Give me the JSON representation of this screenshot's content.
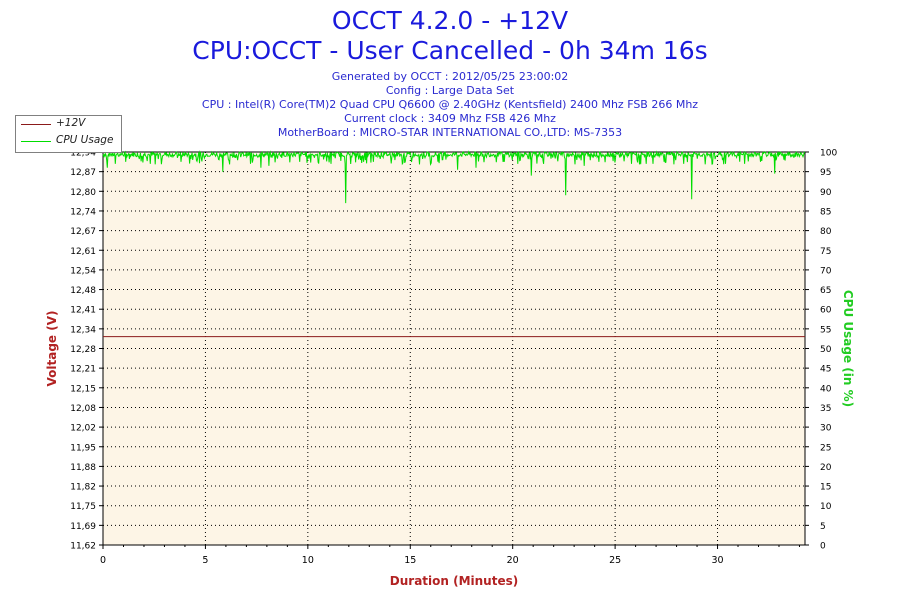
{
  "header": {
    "title_line1": "OCCT 4.2.0 - +12V",
    "title_line2": "CPU:OCCT - User Cancelled - 0h 34m 16s",
    "info": [
      "Generated by OCCT : 2012/05/25 23:00:02",
      "Config : Large Data Set",
      "CPU : Intel(R) Core(TM)2 Quad CPU Q6600 @ 2.40GHz (Kentsfield) 2400 Mhz FSB 266 Mhz",
      "Current clock : 3409 Mhz FSB 426 Mhz",
      "MotherBoard : MICRO-STAR INTERNATIONAL CO.,LTD: MS-7353"
    ]
  },
  "legend": {
    "items": [
      {
        "label": "+12V",
        "color": "#8b1a1a"
      },
      {
        "label": "CPU Usage",
        "color": "#00dd00"
      }
    ]
  },
  "chart_data": {
    "type": "line",
    "xlabel": "Duration (Minutes)",
    "ylabel_left": "Voltage (V)",
    "ylabel_right": "CPU Usage (in %)",
    "xlim": [
      0,
      34.27
    ],
    "xticks": [
      0,
      5,
      10,
      15,
      20,
      25,
      30
    ],
    "ylim_left": [
      11.62,
      12.94
    ],
    "yticks_left": [
      "11,62",
      "11,69",
      "11,75",
      "11,82",
      "11,88",
      "11,95",
      "12,02",
      "12,08",
      "12,15",
      "12,21",
      "12,28",
      "12,34",
      "12,41",
      "12,48",
      "12,54",
      "12,61",
      "12,67",
      "12,74",
      "12,80",
      "12,87",
      "12,94"
    ],
    "ylim_right": [
      0,
      100
    ],
    "yticks_right": [
      "0",
      "5",
      "10",
      "15",
      "20",
      "25",
      "30",
      "35",
      "40",
      "45",
      "50",
      "55",
      "60",
      "65",
      "70",
      "75",
      "80",
      "85",
      "90",
      "95",
      "100"
    ],
    "grid": true,
    "background_color": "#fdf5e6",
    "series": [
      {
        "name": "+12V",
        "axis": "left",
        "color": "#8b1a1a",
        "x": [
          0,
          34.27
        ],
        "y": [
          12.32,
          12.32
        ]
      },
      {
        "name": "CPU Usage",
        "axis": "right",
        "color": "#00dd00",
        "baseline": 99,
        "dips": [
          {
            "x": 0.2,
            "y": 96
          },
          {
            "x": 1.1,
            "y": 97.5
          },
          {
            "x": 2.3,
            "y": 97
          },
          {
            "x": 3.8,
            "y": 97.5
          },
          {
            "x": 5.85,
            "y": 95
          },
          {
            "x": 7.2,
            "y": 97
          },
          {
            "x": 7.7,
            "y": 96
          },
          {
            "x": 8.1,
            "y": 96.5
          },
          {
            "x": 9.6,
            "y": 97.5
          },
          {
            "x": 11.85,
            "y": 87
          },
          {
            "x": 13.2,
            "y": 97.5
          },
          {
            "x": 14.6,
            "y": 97
          },
          {
            "x": 17.3,
            "y": 95.5
          },
          {
            "x": 18.2,
            "y": 96
          },
          {
            "x": 19.6,
            "y": 97.5
          },
          {
            "x": 20.9,
            "y": 94
          },
          {
            "x": 22.6,
            "y": 89
          },
          {
            "x": 23.5,
            "y": 96.5
          },
          {
            "x": 25.8,
            "y": 97
          },
          {
            "x": 27.4,
            "y": 97.5
          },
          {
            "x": 28.75,
            "y": 88
          },
          {
            "x": 30.4,
            "y": 97
          },
          {
            "x": 32.1,
            "y": 97.5
          },
          {
            "x": 32.8,
            "y": 94.5
          }
        ]
      }
    ]
  }
}
